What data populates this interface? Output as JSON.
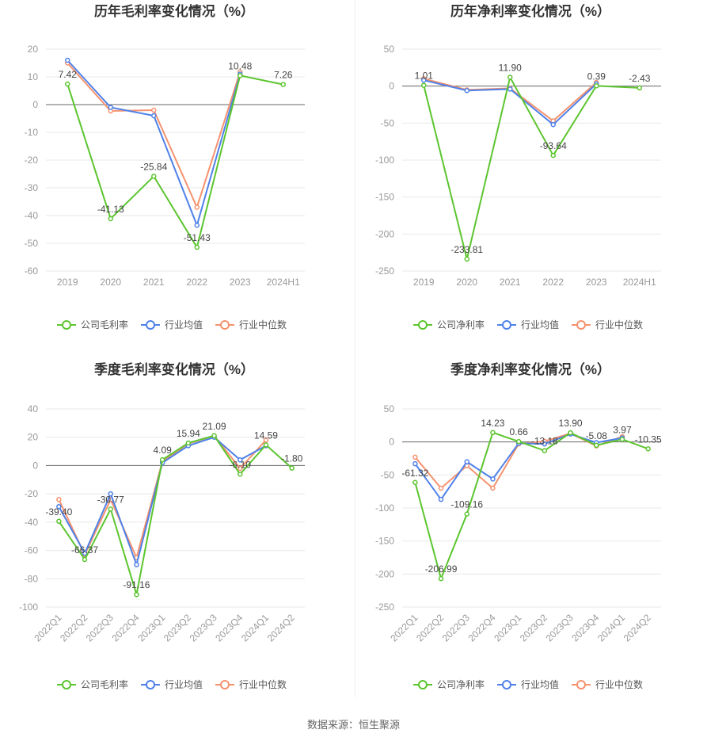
{
  "source": "数据来源：恒生聚源",
  "series_names": [
    "公司毛利率",
    "行业均值",
    "行业中位数"
  ],
  "colors": {
    "company": "#5cc52f",
    "mean": "#4f81e8",
    "median": "#f5926e",
    "grid": "#e8e8e8",
    "axis": "#999999"
  },
  "chart_data": [
    {
      "type": "line",
      "title": "历年毛利率变化情况（%）",
      "categories": [
        "2019",
        "2020",
        "2021",
        "2022",
        "2023",
        "2024H1"
      ],
      "ylim": [
        -60,
        20
      ],
      "yticks": [
        "20",
        "10",
        "0",
        "-10",
        "-20",
        "-30",
        "-40",
        "-50",
        "-60"
      ],
      "rotate_x": false,
      "series": [
        {
          "name": "公司毛利率",
          "values": [
            7.42,
            -41.13,
            -25.84,
            -51.43,
            10.48,
            7.26
          ],
          "labels": [
            "7.42",
            "-41.13",
            "-25.84",
            "-51.43",
            "10.48",
            "7.26"
          ]
        },
        {
          "name": "行业均值",
          "values": [
            16.0,
            -1.0,
            -4.0,
            -43.5,
            11.0,
            null
          ]
        },
        {
          "name": "行业中位数",
          "values": [
            15.0,
            -2.3,
            -2.0,
            -37.0,
            11.8,
            null
          ]
        }
      ]
    },
    {
      "type": "line",
      "title": "历年净利率变化情况（%）",
      "categories": [
        "2019",
        "2020",
        "2021",
        "2022",
        "2023",
        "2024H1"
      ],
      "ylim": [
        -250,
        50
      ],
      "yticks": [
        "50",
        "0",
        "-50",
        "-100",
        "-150",
        "-200",
        "-250"
      ],
      "rotate_x": false,
      "series": [
        {
          "name": "公司净利率",
          "values": [
            1.01,
            -233.81,
            11.9,
            -93.64,
            0.39,
            -2.43
          ],
          "labels": [
            "1.01",
            "-233.81",
            "11.90",
            "-93.64",
            "0.39",
            "-2.43"
          ]
        },
        {
          "name": "行业均值",
          "values": [
            8.0,
            -6.0,
            -4.0,
            -52.0,
            3.0,
            null
          ]
        },
        {
          "name": "行业中位数",
          "values": [
            10.0,
            -5.0,
            -3.0,
            -47.0,
            5.0,
            null
          ]
        }
      ]
    },
    {
      "type": "line",
      "title": "季度毛利率变化情况（%）",
      "categories": [
        "2022Q1",
        "2022Q2",
        "2022Q3",
        "2022Q4",
        "2023Q1",
        "2023Q2",
        "2023Q3",
        "2023Q4",
        "2024Q1",
        "2024Q2"
      ],
      "ylim": [
        -100,
        40
      ],
      "yticks": [
        "40",
        "20",
        "0",
        "-20",
        "-40",
        "-60",
        "-80",
        "-100"
      ],
      "rotate_x": true,
      "series": [
        {
          "name": "公司毛利率",
          "values": [
            -39.4,
            -66.37,
            -30.77,
            -91.16,
            4.09,
            15.94,
            21.09,
            -6.1,
            14.59,
            -1.8
          ],
          "labels": [
            "-39.40",
            "-66.37",
            "-30.77",
            "-91.16",
            "4.09",
            "15.94",
            "21.09",
            "-6.10",
            "14.59",
            "-1.80"
          ]
        },
        {
          "name": "行业均值",
          "values": [
            -29.0,
            -62.0,
            -20.0,
            -70.0,
            2.0,
            14.0,
            20.0,
            4.0,
            14.0,
            null
          ]
        },
        {
          "name": "行业中位数",
          "values": [
            -24.0,
            -63.0,
            -24.0,
            -65.0,
            3.0,
            15.5,
            21.0,
            -2.0,
            18.0,
            null
          ]
        }
      ]
    },
    {
      "type": "line",
      "title": "季度净利率变化情况（%）",
      "categories": [
        "2022Q1",
        "2022Q2",
        "2022Q3",
        "2022Q4",
        "2023Q1",
        "2023Q2",
        "2023Q3",
        "2023Q4",
        "2024Q1",
        "2024Q2"
      ],
      "ylim": [
        -250,
        50
      ],
      "yticks": [
        "50",
        "0",
        "-50",
        "-100",
        "-150",
        "-200",
        "-250"
      ],
      "rotate_x": true,
      "series": [
        {
          "name": "公司净利率",
          "values": [
            -61.32,
            -206.99,
            -109.16,
            14.23,
            0.66,
            -13.18,
            13.9,
            -5.08,
            3.97,
            -10.35
          ],
          "labels": [
            "-61.32",
            "-206.99",
            "-109.16",
            "14.23",
            "0.66",
            "-13.18",
            "13.90",
            "-5.08",
            "3.97",
            "-10.35"
          ]
        },
        {
          "name": "行业均值",
          "values": [
            -33.0,
            -87.0,
            -30.0,
            -56.0,
            -2.0,
            -3.0,
            12.0,
            -1.0,
            6.0,
            null
          ]
        },
        {
          "name": "行业中位数",
          "values": [
            -23.0,
            -70.0,
            -36.0,
            -70.0,
            -3.0,
            1.0,
            13.0,
            -6.0,
            8.0,
            null
          ]
        }
      ]
    }
  ]
}
